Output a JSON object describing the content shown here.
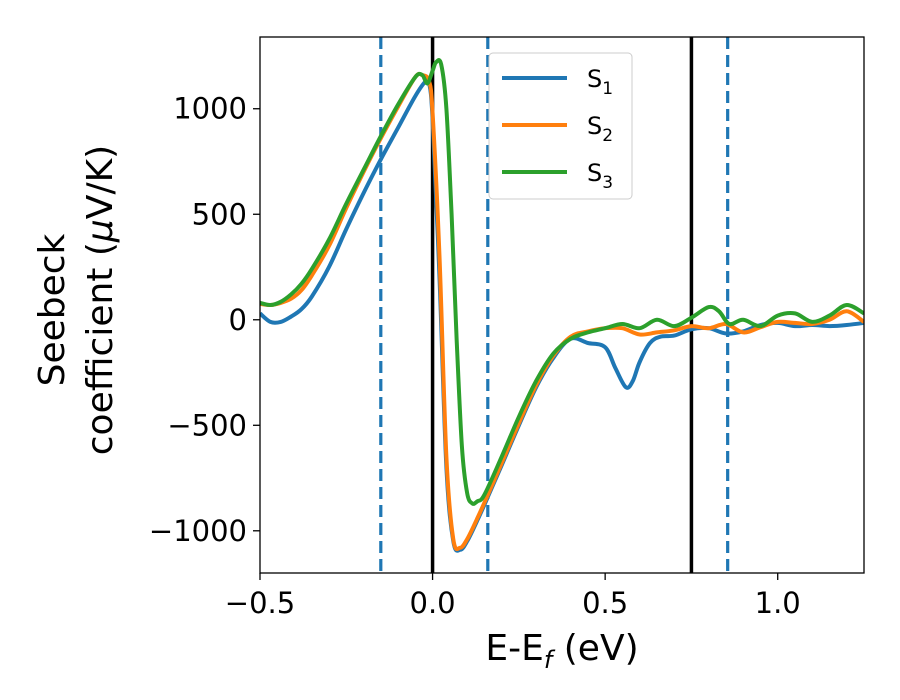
{
  "chart_data": {
    "type": "line",
    "xlabel": {
      "main": "E-E",
      "sub": "f",
      "tail": " (eV)"
    },
    "ylabel": {
      "line1": "Seebeck",
      "line2_prefix": "coefficient  (",
      "line2_mu": "μ",
      "line2_suffix": "V/K)"
    },
    "xlim": [
      -0.5,
      1.25
    ],
    "ylim": [
      -1200,
      1340
    ],
    "xticks": [
      -0.5,
      0.0,
      0.5,
      1.0
    ],
    "xtick_labels": [
      "−0.5",
      "0.0",
      "0.5",
      "1.0"
    ],
    "yticks": [
      -1000,
      -500,
      0,
      500,
      1000
    ],
    "ytick_labels": [
      "−1000",
      "−500",
      "0",
      "500",
      "1000"
    ],
    "grid": false,
    "legend_position": "top-center",
    "vlines": [
      {
        "x": 0.0,
        "style": "solid",
        "color": "#000000"
      },
      {
        "x": 0.75,
        "style": "solid",
        "color": "#000000"
      },
      {
        "x": -0.15,
        "style": "dashed",
        "color": "#1f77b4"
      },
      {
        "x": 0.16,
        "style": "dashed",
        "color": "#1f77b4"
      },
      {
        "x": 0.855,
        "style": "dashed",
        "color": "#1f77b4"
      }
    ],
    "series": [
      {
        "name": "S",
        "sub": "1",
        "color": "#1f77b4",
        "x": [
          -0.5,
          -0.47,
          -0.44,
          -0.41,
          -0.38,
          -0.35,
          -0.3,
          -0.25,
          -0.2,
          -0.15,
          -0.1,
          -0.05,
          -0.02,
          -0.01,
          0.0,
          0.02,
          0.04,
          0.06,
          0.08,
          0.1,
          0.13,
          0.16,
          0.2,
          0.25,
          0.3,
          0.35,
          0.4,
          0.45,
          0.5,
          0.53,
          0.56,
          0.58,
          0.6,
          0.63,
          0.66,
          0.7,
          0.75,
          0.8,
          0.85,
          0.9,
          0.95,
          1.0,
          1.05,
          1.1,
          1.15,
          1.2,
          1.25
        ],
        "y": [
          30,
          -10,
          -10,
          15,
          50,
          110,
          250,
          430,
          600,
          760,
          910,
          1060,
          1130,
          1120,
          950,
          200,
          -700,
          -1050,
          -1090,
          -1050,
          -950,
          -840,
          -690,
          -500,
          -320,
          -180,
          -90,
          -110,
          -130,
          -230,
          -320,
          -290,
          -200,
          -110,
          -80,
          -75,
          -45,
          -40,
          -65,
          -55,
          -25,
          -15,
          -30,
          -25,
          -30,
          -25,
          -15
        ]
      },
      {
        "name": "S",
        "sub": "2",
        "color": "#ff7f0e",
        "x": [
          -0.5,
          -0.47,
          -0.44,
          -0.41,
          -0.38,
          -0.35,
          -0.3,
          -0.25,
          -0.2,
          -0.15,
          -0.1,
          -0.05,
          -0.03,
          -0.01,
          0.0,
          0.02,
          0.04,
          0.06,
          0.08,
          0.1,
          0.13,
          0.16,
          0.2,
          0.25,
          0.3,
          0.35,
          0.4,
          0.45,
          0.5,
          0.55,
          0.6,
          0.65,
          0.7,
          0.75,
          0.8,
          0.85,
          0.9,
          0.95,
          1.0,
          1.05,
          1.1,
          1.15,
          1.2,
          1.25
        ],
        "y": [
          75,
          70,
          80,
          100,
          140,
          210,
          350,
          530,
          700,
          860,
          1010,
          1150,
          1160,
          1130,
          980,
          300,
          -650,
          -1040,
          -1080,
          -1040,
          -940,
          -830,
          -680,
          -490,
          -310,
          -170,
          -80,
          -55,
          -40,
          -40,
          -70,
          -60,
          -50,
          -30,
          -40,
          -20,
          -60,
          -35,
          -10,
          -15,
          -20,
          0,
          40,
          -10
        ]
      },
      {
        "name": "S",
        "sub": "3",
        "color": "#2ca02c",
        "x": [
          -0.5,
          -0.47,
          -0.44,
          -0.41,
          -0.38,
          -0.35,
          -0.3,
          -0.25,
          -0.2,
          -0.15,
          -0.1,
          -0.05,
          -0.03,
          -0.015,
          0.0,
          0.01,
          0.025,
          0.04,
          0.055,
          0.07,
          0.085,
          0.1,
          0.115,
          0.13,
          0.15,
          0.2,
          0.25,
          0.3,
          0.35,
          0.4,
          0.45,
          0.5,
          0.55,
          0.6,
          0.65,
          0.7,
          0.75,
          0.8,
          0.83,
          0.86,
          0.9,
          0.95,
          1.0,
          1.05,
          1.1,
          1.15,
          1.2,
          1.25
        ],
        "y": [
          80,
          70,
          85,
          120,
          170,
          240,
          380,
          550,
          710,
          870,
          1020,
          1150,
          1160,
          1120,
          1180,
          1220,
          1210,
          1000,
          500,
          -100,
          -600,
          -820,
          -870,
          -860,
          -830,
          -650,
          -460,
          -290,
          -160,
          -90,
          -60,
          -40,
          -20,
          -40,
          0,
          -30,
          10,
          60,
          40,
          -20,
          0,
          -30,
          20,
          30,
          -10,
          20,
          70,
          30
        ]
      }
    ]
  }
}
